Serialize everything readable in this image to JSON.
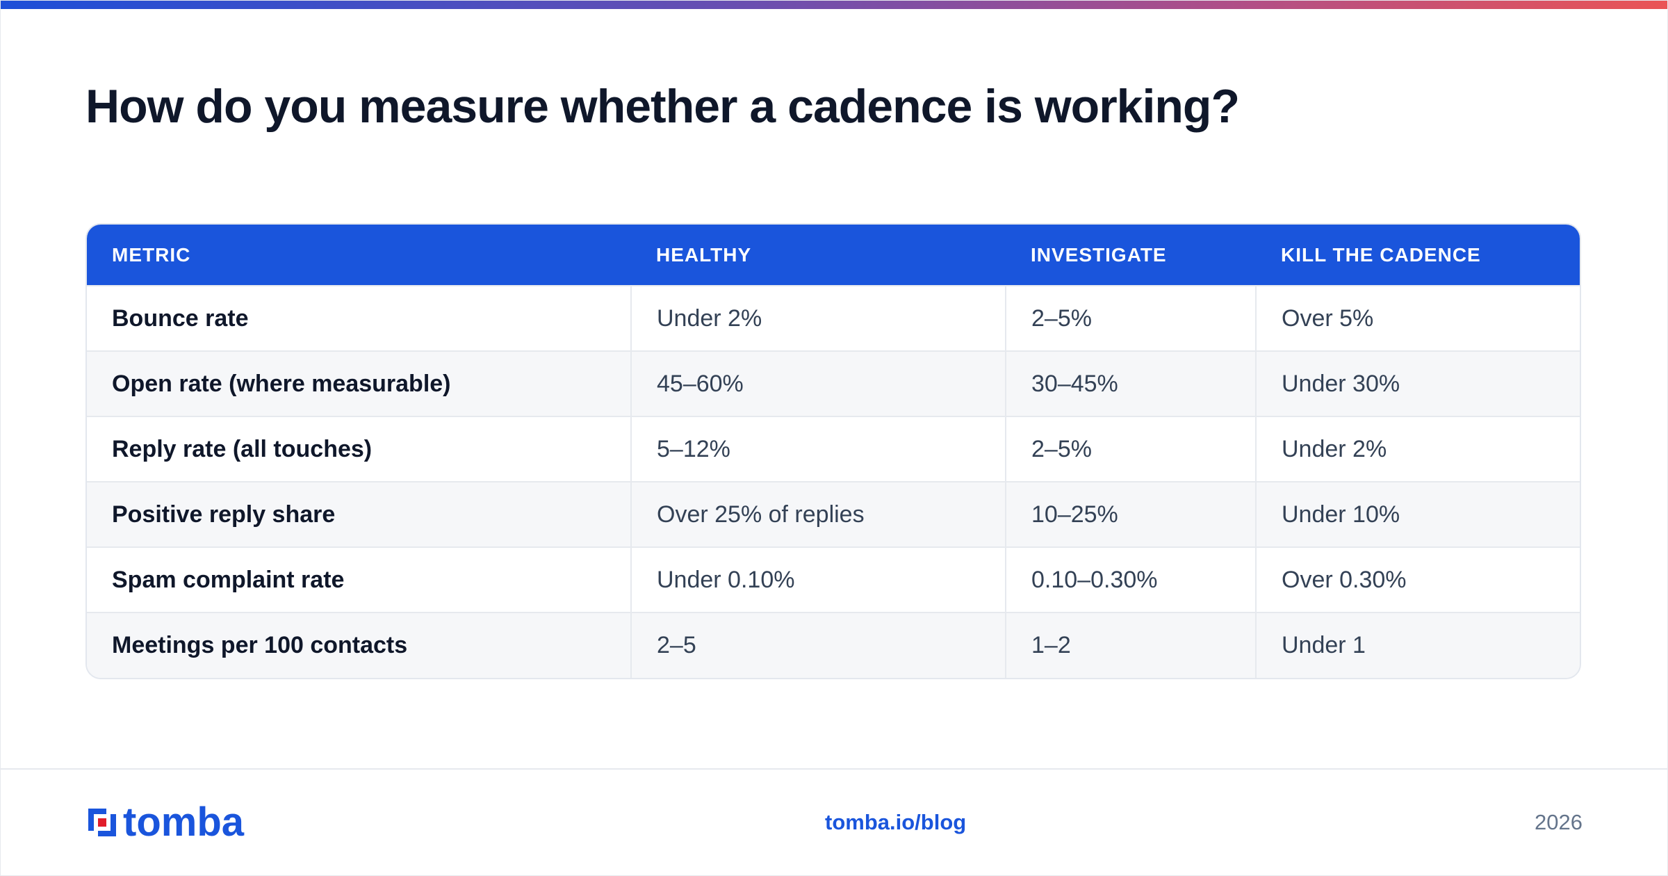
{
  "title": "How do you measure whether a cadence is working?",
  "colors": {
    "accent": "#1a55dc",
    "logo_red": "#e11d2a",
    "gradient_start": "#1d4fd8",
    "gradient_end": "#ea5455"
  },
  "table": {
    "headers": [
      "METRIC",
      "HEALTHY",
      "INVESTIGATE",
      "KILL THE CADENCE"
    ],
    "rows": [
      [
        "Bounce rate",
        "Under 2%",
        "2–5%",
        "Over 5%"
      ],
      [
        "Open rate (where measurable)",
        "45–60%",
        "30–45%",
        "Under 30%"
      ],
      [
        "Reply rate (all touches)",
        "5–12%",
        "2–5%",
        "Under 2%"
      ],
      [
        "Positive reply share",
        "Over 25% of replies",
        "10–25%",
        "Under 10%"
      ],
      [
        "Spam complaint rate",
        "Under 0.10%",
        "0.10–0.30%",
        "Over 0.30%"
      ],
      [
        "Meetings per 100 contacts",
        "2–5",
        "1–2",
        "Under 1"
      ]
    ]
  },
  "footer": {
    "logo_text": "tomba",
    "logo_icon": "tomba-logo-icon",
    "link": "tomba.io/blog",
    "year": "2026"
  }
}
